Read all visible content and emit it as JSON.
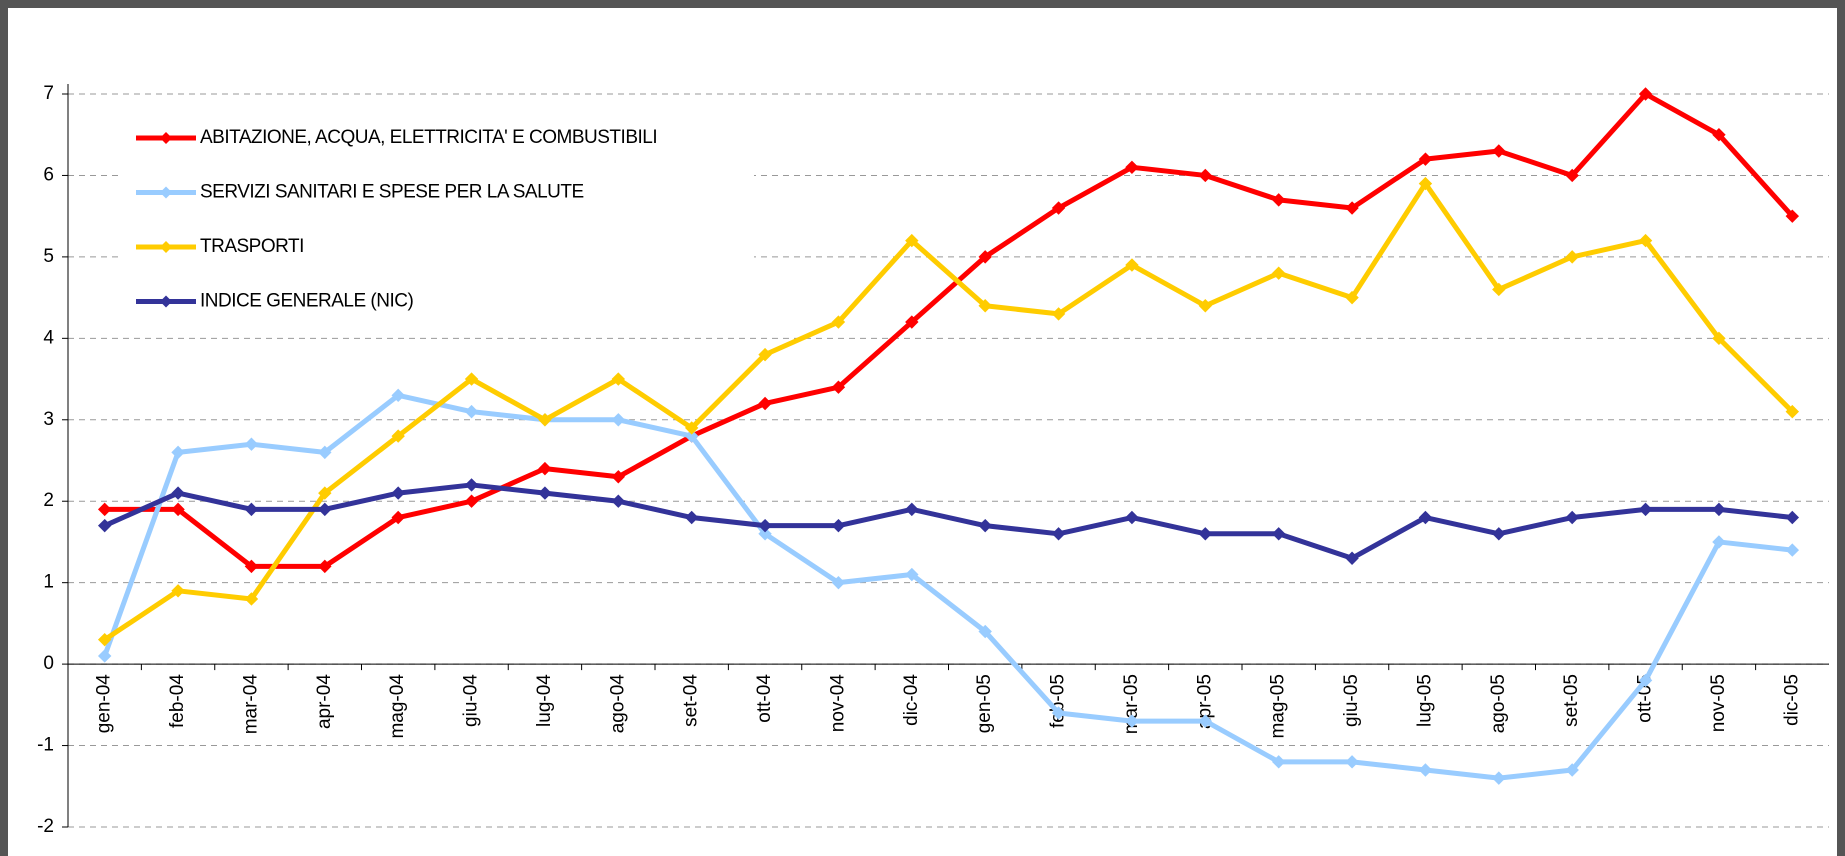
{
  "chart_data": {
    "type": "line",
    "categories": [
      "gen-04",
      "feb-04",
      "mar-04",
      "apr-04",
      "mag-04",
      "giu-04",
      "lug-04",
      "ago-04",
      "set-04",
      "ott-04",
      "nov-04",
      "dic-04",
      "gen-05",
      "feb-05",
      "mar-05",
      "apr-05",
      "mag-05",
      "giu-05",
      "lug-05",
      "ago-05",
      "set-05",
      "ott-05",
      "nov-05",
      "dic-05"
    ],
    "series": [
      {
        "name": "ABITAZIONE, ACQUA, ELETTRICITA' E COMBUSTIBILI",
        "color": "#ff0000",
        "values": [
          1.9,
          1.9,
          1.2,
          1.2,
          1.8,
          2.0,
          2.4,
          2.3,
          2.8,
          3.2,
          3.4,
          4.2,
          5.0,
          5.6,
          6.1,
          6.0,
          5.7,
          5.6,
          6.2,
          6.3,
          6.0,
          7.0,
          6.5,
          5.5
        ]
      },
      {
        "name": "SERVIZI SANITARI E SPESE PER LA SALUTE",
        "color": "#99ccff",
        "values": [
          0.1,
          2.6,
          2.7,
          2.6,
          3.3,
          3.1,
          3.0,
          3.0,
          2.8,
          1.6,
          1.0,
          1.1,
          0.4,
          -0.6,
          -0.7,
          -0.7,
          -1.2,
          -1.2,
          -1.3,
          -1.4,
          -1.3,
          -0.2,
          1.5,
          1.4
        ]
      },
      {
        "name": "TRASPORTI",
        "color": "#ffcc00",
        "values": [
          0.3,
          0.9,
          0.8,
          2.1,
          2.8,
          3.5,
          3.0,
          3.5,
          2.9,
          3.8,
          4.2,
          5.2,
          4.4,
          4.3,
          4.9,
          4.4,
          4.8,
          4.5,
          5.9,
          4.6,
          5.0,
          5.2,
          4.0,
          3.1
        ]
      },
      {
        "name": "INDICE GENERALE (NIC)",
        "color": "#333399",
        "values": [
          1.7,
          2.1,
          1.9,
          1.9,
          2.1,
          2.2,
          2.1,
          2.0,
          1.8,
          1.7,
          1.7,
          1.9,
          1.7,
          1.6,
          1.8,
          1.6,
          1.6,
          1.3,
          1.8,
          1.6,
          1.8,
          1.9,
          1.9,
          1.8
        ]
      }
    ],
    "ylim": [
      -2,
      7
    ],
    "yticks": [
      -2,
      -1,
      0,
      1,
      2,
      3,
      4,
      5,
      6,
      7
    ],
    "grid": true,
    "legend": "upper-left"
  }
}
